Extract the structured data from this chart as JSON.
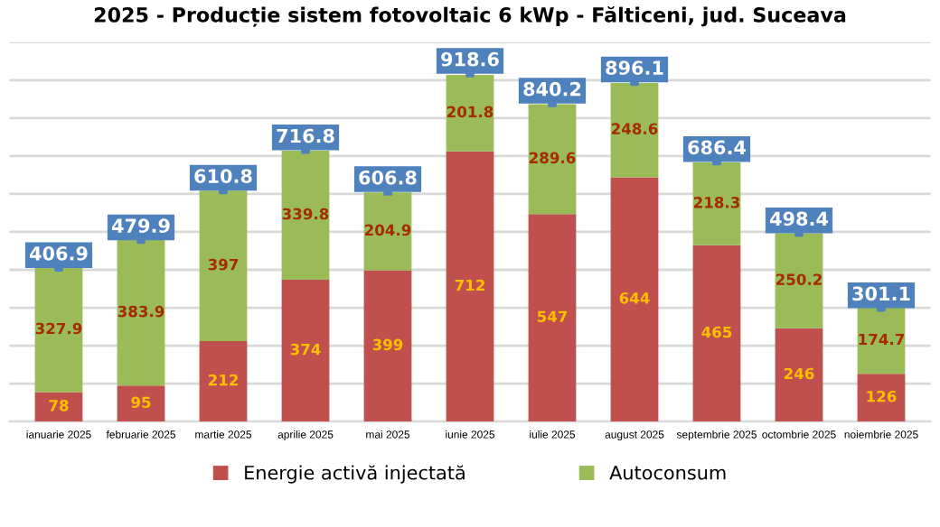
{
  "chart_data": {
    "type": "bar",
    "stacked": true,
    "title": "2025 - Producție sistem fotovoltaic 6 kWp - Fălticeni, jud. Suceava",
    "categories": [
      "ianuarie 2025",
      "februarie 2025",
      "martie 2025",
      "aprilie 2025",
      "mai 2025",
      "iunie 2025",
      "iulie 2025",
      "august 2025",
      "septembrie 2025",
      "octombrie 2025",
      "noiembrie 2025"
    ],
    "series": [
      {
        "name": "Energie activă injectată",
        "color": "#c0504d",
        "values": [
          78,
          95,
          212,
          374,
          399,
          712,
          547,
          644,
          465,
          246,
          126
        ]
      },
      {
        "name": "Autoconsum",
        "color": "#9bbb59",
        "values": [
          327.9,
          383.9,
          397,
          339.8,
          204.9,
          201.8,
          289.6,
          248.6,
          218.3,
          250.2,
          174.7
        ]
      },
      {
        "type": "scatter",
        "color": "#4f81bd",
        "values": [
          406.9,
          479.9,
          610.8,
          716.8,
          606.8,
          918.6,
          840.2,
          896.1,
          686.4,
          498.4,
          301.1
        ]
      }
    ],
    "data_labels": true,
    "ylim": [
      0,
      1000
    ],
    "yticks": [
      {
        "value": 0,
        "label": null
      },
      {
        "value": 100,
        "label": null
      },
      {
        "value": 200,
        "label": null
      },
      {
        "value": 300,
        "label": null
      },
      {
        "value": 400,
        "label": null
      },
      {
        "value": 500,
        "label": null
      },
      {
        "value": 600,
        "label": null
      },
      {
        "value": 700,
        "label": null
      },
      {
        "value": 800,
        "label": null
      },
      {
        "value": 900,
        "label": null
      },
      {
        "value": 1000,
        "label": null
      }
    ],
    "tick_labels": "x",
    "grid": "y",
    "legend": "bottom"
  }
}
